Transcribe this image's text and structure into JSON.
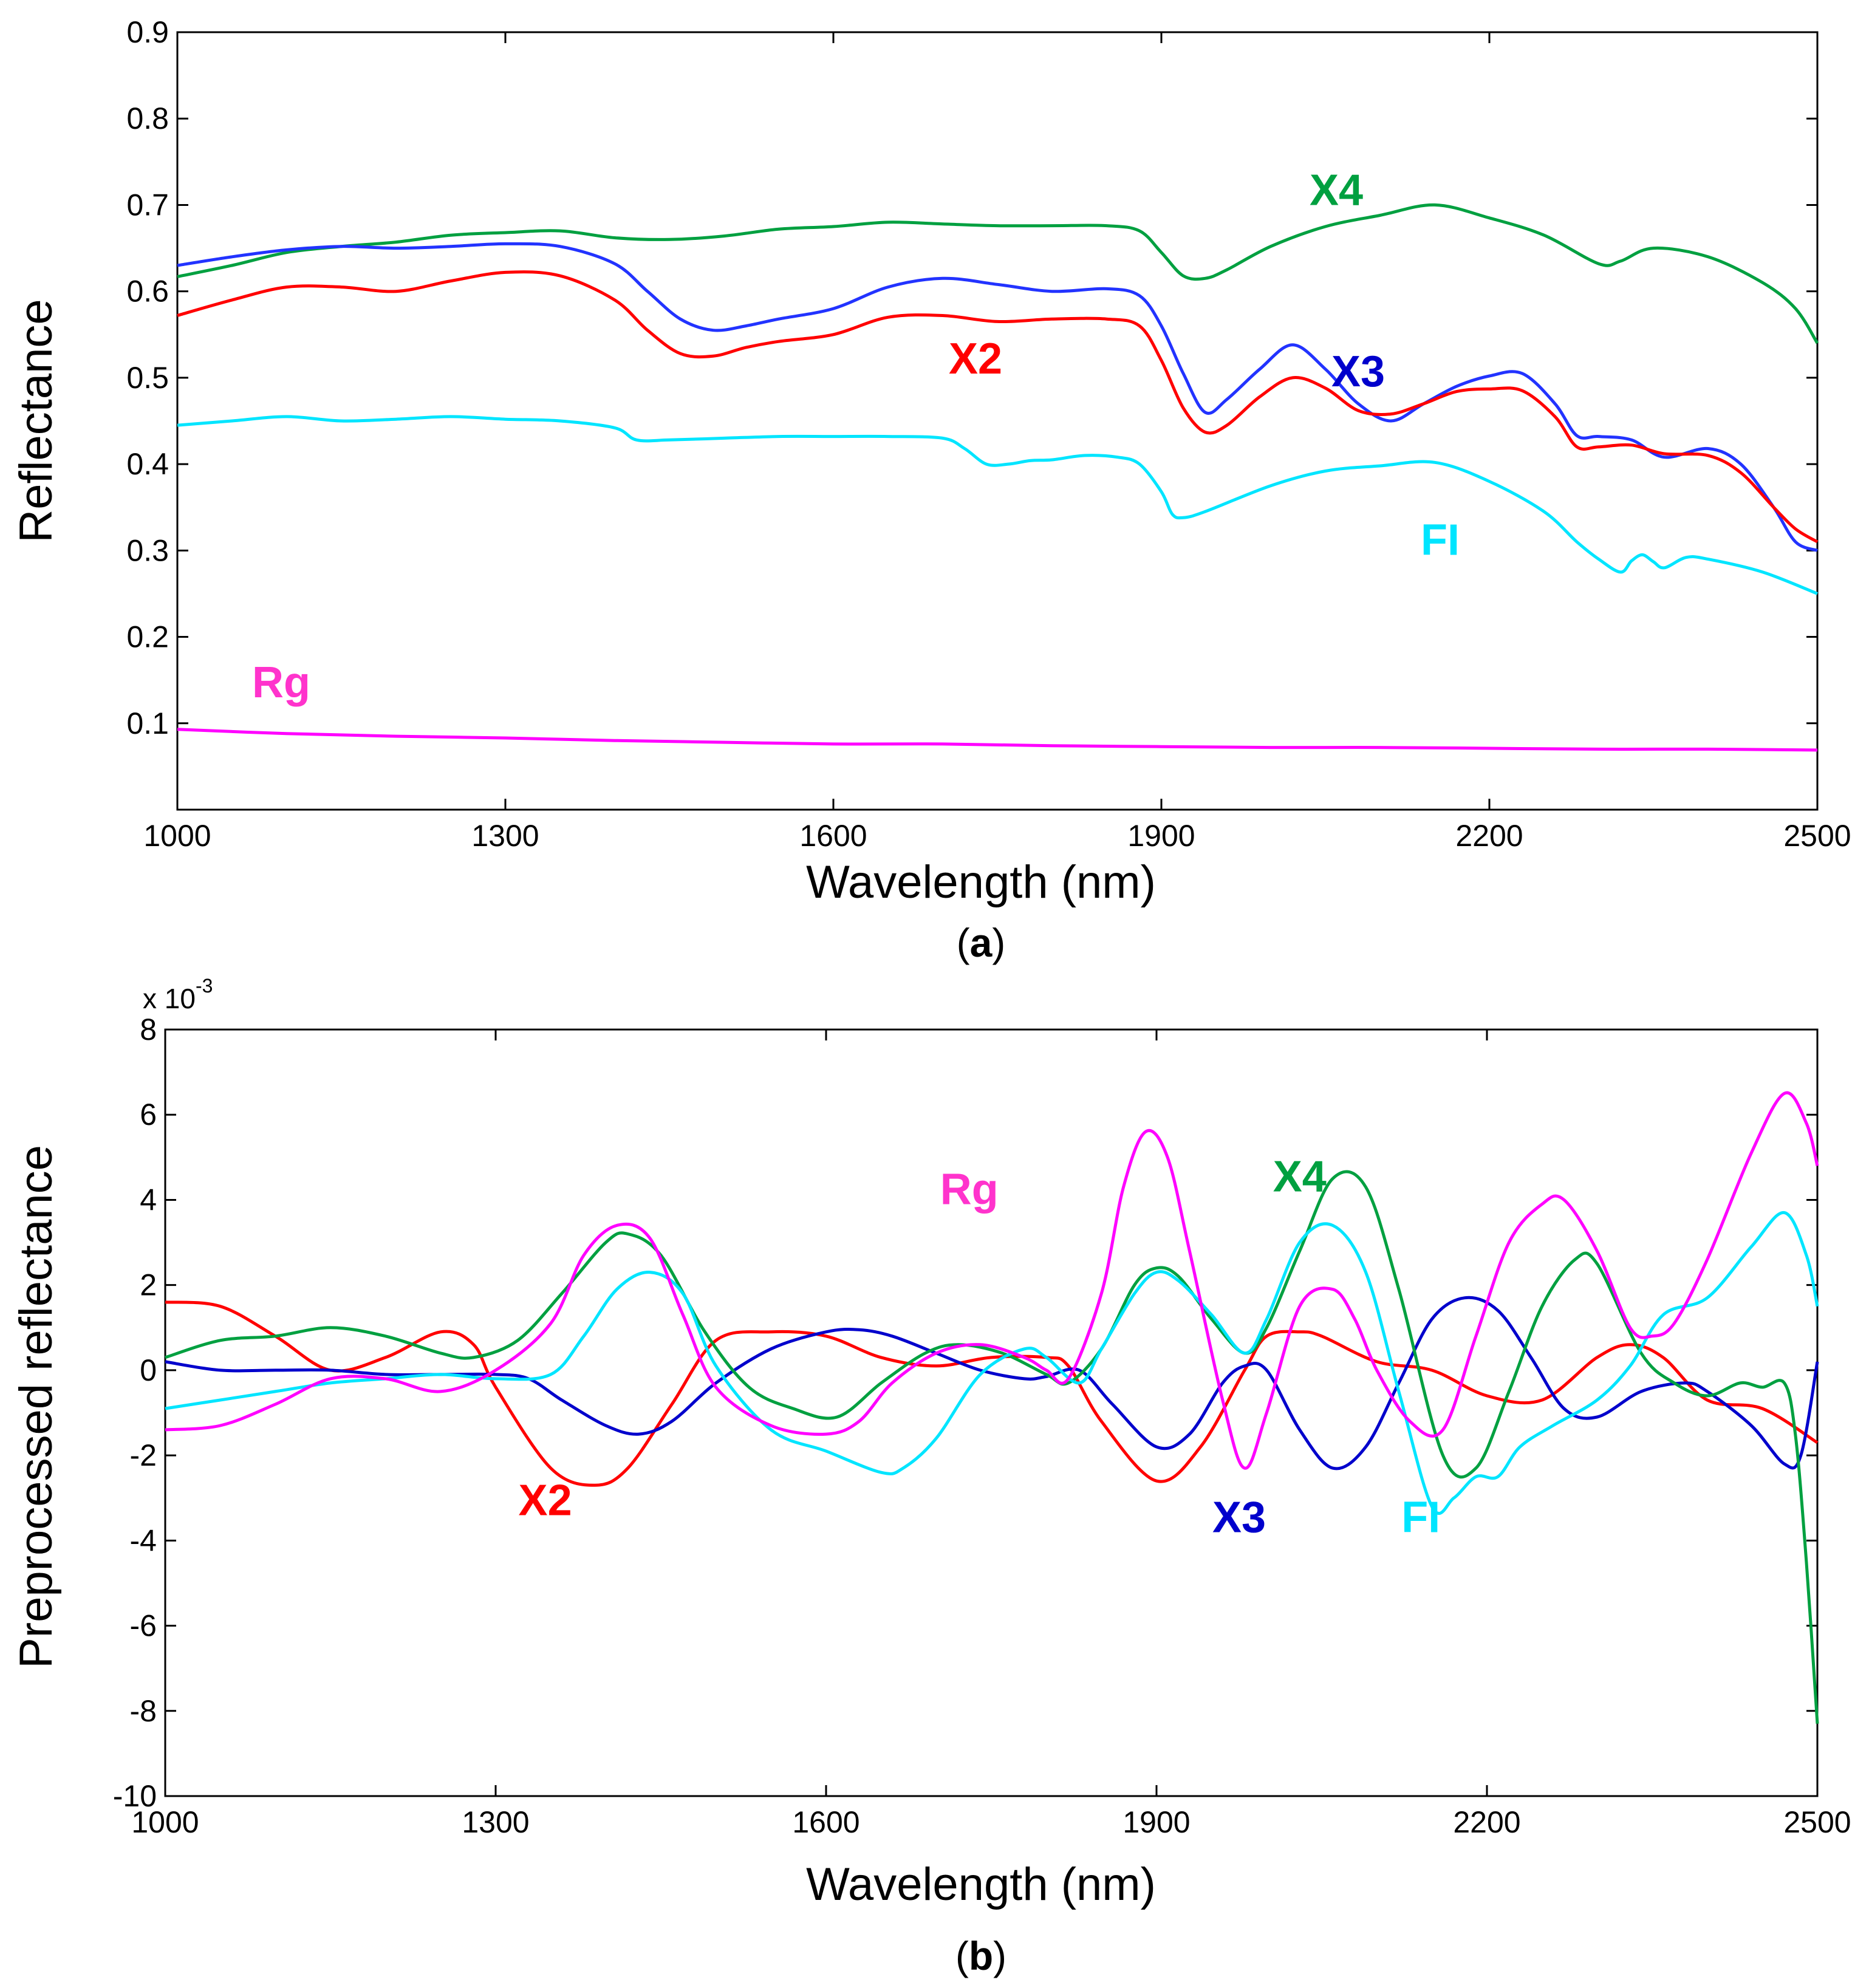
{
  "colors": {
    "X2": "#ff0000",
    "X3": "#0000cc",
    "X4": "#00a040",
    "FI": "#00e5ff",
    "Rg": "#ff33cc",
    "Rg_line": "#ff00ff",
    "X3_line_a": "#2233ff"
  },
  "chart_data": [
    {
      "type": "line",
      "panel": "(a)",
      "panel_letter": "a",
      "xlabel": "Wavelength (nm)",
      "ylabel": "Reflectance",
      "xlim": [
        1000,
        2500
      ],
      "ylim": [
        0,
        0.9
      ],
      "xticks": [
        1000,
        1300,
        1600,
        1900,
        2200,
        2500
      ],
      "yticks": [
        0.1,
        0.2,
        0.3,
        0.4,
        0.5,
        0.6,
        0.7,
        0.8,
        0.9
      ],
      "ytick_labels": [
        "0.1",
        "0.2",
        "0.3",
        "0.4",
        "0.5",
        "0.6",
        "0.7",
        "0.8",
        "0.9"
      ],
      "grid": false,
      "series": [
        {
          "name": "X4",
          "x": [
            1000,
            1050,
            1100,
            1150,
            1200,
            1250,
            1300,
            1350,
            1400,
            1450,
            1500,
            1550,
            1600,
            1650,
            1700,
            1750,
            1800,
            1850,
            1880,
            1900,
            1920,
            1940,
            1960,
            2000,
            2050,
            2100,
            2150,
            2200,
            2250,
            2300,
            2320,
            2350,
            2400,
            2450,
            2480,
            2500
          ],
          "y": [
            0.617,
            0.63,
            0.645,
            0.652,
            0.657,
            0.665,
            0.668,
            0.67,
            0.662,
            0.66,
            0.664,
            0.672,
            0.675,
            0.68,
            0.678,
            0.676,
            0.676,
            0.676,
            0.67,
            0.645,
            0.618,
            0.615,
            0.625,
            0.652,
            0.675,
            0.688,
            0.7,
            0.685,
            0.665,
            0.632,
            0.635,
            0.65,
            0.64,
            0.61,
            0.58,
            0.54
          ]
        },
        {
          "name": "X3",
          "x": [
            1000,
            1050,
            1100,
            1150,
            1200,
            1250,
            1300,
            1350,
            1400,
            1430,
            1460,
            1490,
            1520,
            1550,
            1600,
            1650,
            1700,
            1750,
            1800,
            1850,
            1880,
            1900,
            1920,
            1940,
            1960,
            1990,
            2020,
            2050,
            2080,
            2110,
            2140,
            2170,
            2200,
            2230,
            2260,
            2280,
            2300,
            2330,
            2360,
            2400,
            2430,
            2460,
            2480,
            2500
          ],
          "y": [
            0.63,
            0.64,
            0.648,
            0.652,
            0.65,
            0.652,
            0.655,
            0.652,
            0.632,
            0.6,
            0.568,
            0.555,
            0.56,
            0.568,
            0.58,
            0.605,
            0.615,
            0.608,
            0.6,
            0.603,
            0.595,
            0.56,
            0.505,
            0.46,
            0.475,
            0.51,
            0.538,
            0.51,
            0.47,
            0.45,
            0.47,
            0.49,
            0.502,
            0.505,
            0.47,
            0.433,
            0.432,
            0.428,
            0.408,
            0.418,
            0.4,
            0.35,
            0.31,
            0.3
          ]
        },
        {
          "name": "X2",
          "x": [
            1000,
            1050,
            1100,
            1150,
            1200,
            1250,
            1300,
            1350,
            1400,
            1430,
            1460,
            1490,
            1520,
            1550,
            1600,
            1650,
            1700,
            1750,
            1800,
            1850,
            1880,
            1900,
            1920,
            1940,
            1960,
            1990,
            2020,
            2050,
            2080,
            2110,
            2140,
            2170,
            2200,
            2230,
            2260,
            2280,
            2300,
            2330,
            2360,
            2400,
            2430,
            2460,
            2480,
            2500
          ],
          "y": [
            0.572,
            0.59,
            0.605,
            0.605,
            0.6,
            0.612,
            0.622,
            0.618,
            0.59,
            0.555,
            0.528,
            0.525,
            0.535,
            0.542,
            0.55,
            0.57,
            0.572,
            0.565,
            0.568,
            0.568,
            0.56,
            0.52,
            0.465,
            0.437,
            0.445,
            0.478,
            0.5,
            0.488,
            0.462,
            0.458,
            0.47,
            0.484,
            0.487,
            0.485,
            0.455,
            0.42,
            0.42,
            0.422,
            0.412,
            0.41,
            0.39,
            0.35,
            0.325,
            0.31
          ]
        },
        {
          "name": "FI",
          "x": [
            1000,
            1050,
            1100,
            1150,
            1200,
            1250,
            1300,
            1350,
            1400,
            1420,
            1450,
            1500,
            1550,
            1600,
            1650,
            1700,
            1720,
            1740,
            1760,
            1780,
            1800,
            1830,
            1860,
            1880,
            1900,
            1910,
            1920,
            1940,
            2000,
            2050,
            2100,
            2150,
            2200,
            2250,
            2280,
            2300,
            2320,
            2330,
            2340,
            2350,
            2360,
            2380,
            2400,
            2450,
            2500
          ],
          "y": [
            0.445,
            0.45,
            0.455,
            0.45,
            0.452,
            0.455,
            0.452,
            0.45,
            0.442,
            0.428,
            0.428,
            0.43,
            0.432,
            0.432,
            0.432,
            0.43,
            0.418,
            0.4,
            0.4,
            0.404,
            0.405,
            0.41,
            0.408,
            0.4,
            0.368,
            0.342,
            0.338,
            0.345,
            0.375,
            0.392,
            0.398,
            0.402,
            0.38,
            0.345,
            0.31,
            0.29,
            0.275,
            0.288,
            0.295,
            0.287,
            0.28,
            0.292,
            0.29,
            0.275,
            0.25
          ]
        },
        {
          "name": "Rg",
          "x": [
            1000,
            1100,
            1200,
            1300,
            1400,
            1500,
            1600,
            1700,
            1800,
            1900,
            2000,
            2100,
            2200,
            2300,
            2400,
            2500
          ],
          "y": [
            0.093,
            0.088,
            0.085,
            0.083,
            0.08,
            0.078,
            0.076,
            0.076,
            0.074,
            0.073,
            0.072,
            0.072,
            0.071,
            0.07,
            0.07,
            0.069
          ]
        }
      ],
      "labels": [
        {
          "text": "X4",
          "series": "X4",
          "x": 2060,
          "y": 0.7
        },
        {
          "text": "X2",
          "series": "X2",
          "x": 1730,
          "y": 0.505
        },
        {
          "text": "X3",
          "series": "X3",
          "x": 2080,
          "y": 0.49
        },
        {
          "text": "FI",
          "series": "FI",
          "x": 2155,
          "y": 0.295
        },
        {
          "text": "Rg",
          "series": "Rg",
          "x": 1095,
          "y": 0.13
        }
      ]
    },
    {
      "type": "line",
      "panel": "(b)",
      "panel_letter": "b",
      "xlabel": "Wavelength (nm)",
      "ylabel": "Preprocessed reflectance",
      "y_multiplier_base": "x 10",
      "y_multiplier_exp": "-3",
      "xlim": [
        1000,
        2500
      ],
      "ylim": [
        -10,
        8
      ],
      "xticks": [
        1000,
        1300,
        1600,
        1900,
        2200,
        2500
      ],
      "yticks": [
        -10,
        -8,
        -6,
        -4,
        -2,
        0,
        2,
        4,
        6,
        8
      ],
      "ytick_labels": [
        "-10",
        "-8",
        "-6",
        "-4",
        "-2",
        "0",
        "2",
        "4",
        "6",
        "8"
      ],
      "grid": false,
      "series": [
        {
          "name": "X2",
          "x": [
            1000,
            1050,
            1100,
            1150,
            1200,
            1250,
            1280,
            1300,
            1350,
            1390,
            1420,
            1460,
            1500,
            1550,
            1600,
            1650,
            1700,
            1750,
            1800,
            1820,
            1850,
            1900,
            1940,
            1980,
            2000,
            2030,
            2050,
            2100,
            2150,
            2200,
            2250,
            2300,
            2330,
            2360,
            2400,
            2450,
            2500
          ],
          "y": [
            1.6,
            1.5,
            0.8,
            0.0,
            0.3,
            0.9,
            0.6,
            -0.4,
            -2.3,
            -2.7,
            -2.3,
            -0.8,
            0.7,
            0.9,
            0.8,
            0.3,
            0.1,
            0.3,
            0.3,
            0.1,
            -1.2,
            -2.6,
            -1.8,
            0.0,
            0.8,
            0.9,
            0.8,
            0.2,
            0.0,
            -0.6,
            -0.7,
            0.3,
            0.6,
            0.3,
            -0.7,
            -0.9,
            -1.7
          ]
        },
        {
          "name": "X3",
          "x": [
            1000,
            1050,
            1100,
            1150,
            1200,
            1250,
            1300,
            1330,
            1360,
            1400,
            1430,
            1460,
            1500,
            1550,
            1600,
            1630,
            1660,
            1700,
            1740,
            1780,
            1800,
            1830,
            1860,
            1900,
            1930,
            1960,
            1980,
            2000,
            2030,
            2060,
            2090,
            2120,
            2150,
            2180,
            2210,
            2240,
            2270,
            2300,
            2340,
            2380,
            2400,
            2440,
            2470,
            2485,
            2500
          ],
          "y": [
            0.2,
            0.0,
            0.0,
            0.0,
            -0.1,
            -0.1,
            -0.1,
            -0.2,
            -0.7,
            -1.3,
            -1.5,
            -1.2,
            -0.3,
            0.5,
            0.9,
            0.95,
            0.8,
            0.4,
            0.0,
            -0.2,
            -0.15,
            0.0,
            -0.8,
            -1.8,
            -1.5,
            -0.3,
            0.1,
            0.0,
            -1.4,
            -2.3,
            -1.8,
            -0.3,
            1.2,
            1.7,
            1.4,
            0.3,
            -0.9,
            -1.1,
            -0.5,
            -0.3,
            -0.5,
            -1.3,
            -2.2,
            -2.0,
            0.2
          ]
        },
        {
          "name": "X4",
          "x": [
            1000,
            1050,
            1100,
            1150,
            1200,
            1250,
            1280,
            1320,
            1360,
            1400,
            1420,
            1450,
            1490,
            1530,
            1570,
            1610,
            1650,
            1690,
            1720,
            1760,
            1800,
            1820,
            1850,
            1880,
            1900,
            1920,
            1950,
            1980,
            2000,
            2030,
            2060,
            2090,
            2120,
            2160,
            2190,
            2220,
            2250,
            2280,
            2300,
            2340,
            2370,
            2400,
            2430,
            2450,
            2470,
            2480,
            2490,
            2500
          ],
          "y": [
            0.3,
            0.7,
            0.8,
            1.0,
            0.8,
            0.4,
            0.3,
            0.7,
            1.8,
            3.0,
            3.2,
            2.7,
            0.9,
            -0.4,
            -0.9,
            -1.1,
            -0.3,
            0.4,
            0.6,
            0.4,
            -0.1,
            -0.3,
            0.5,
            2.0,
            2.4,
            2.2,
            1.2,
            0.4,
            1.0,
            2.8,
            4.5,
            4.3,
            1.9,
            -2.0,
            -2.3,
            -0.5,
            1.5,
            2.6,
            2.5,
            0.4,
            -0.3,
            -0.6,
            -0.3,
            -0.4,
            -0.3,
            -1.5,
            -4.5,
            -8.3
          ]
        },
        {
          "name": "FI",
          "x": [
            1000,
            1050,
            1100,
            1150,
            1200,
            1250,
            1300,
            1350,
            1380,
            1410,
            1440,
            1470,
            1500,
            1550,
            1600,
            1650,
            1670,
            1700,
            1740,
            1780,
            1800,
            1830,
            1850,
            1880,
            1900,
            1920,
            1950,
            1980,
            2000,
            2030,
            2060,
            2090,
            2120,
            2150,
            2170,
            2190,
            2210,
            2230,
            2260,
            2300,
            2330,
            2360,
            2400,
            2440,
            2470,
            2490,
            2500
          ],
          "y": [
            -0.9,
            -0.7,
            -0.5,
            -0.3,
            -0.2,
            -0.1,
            -0.2,
            -0.1,
            0.8,
            1.9,
            2.3,
            1.8,
            0.1,
            -1.4,
            -1.9,
            -2.4,
            -2.3,
            -1.6,
            -0.1,
            0.5,
            0.3,
            -0.3,
            0.5,
            1.8,
            2.3,
            2.1,
            1.3,
            0.4,
            1.2,
            3.0,
            3.4,
            2.3,
            -0.5,
            -3.2,
            -3.0,
            -2.5,
            -2.5,
            -1.8,
            -1.3,
            -0.7,
            0.1,
            1.3,
            1.7,
            2.9,
            3.7,
            2.7,
            1.5
          ]
        },
        {
          "name": "Rg",
          "x": [
            1000,
            1050,
            1100,
            1150,
            1200,
            1250,
            1300,
            1350,
            1380,
            1410,
            1440,
            1470,
            1500,
            1550,
            1600,
            1630,
            1660,
            1700,
            1740,
            1780,
            1800,
            1820,
            1850,
            1870,
            1890,
            1910,
            1930,
            1960,
            1980,
            2000,
            2030,
            2060,
            2080,
            2100,
            2130,
            2160,
            2190,
            2220,
            2250,
            2270,
            2300,
            2330,
            2350,
            2370,
            2400,
            2440,
            2470,
            2490,
            2500
          ],
          "y": [
            -1.4,
            -1.3,
            -0.8,
            -0.2,
            -0.2,
            -0.5,
            0.0,
            1.1,
            2.7,
            3.4,
            3.1,
            1.3,
            -0.4,
            -1.3,
            -1.5,
            -1.2,
            -0.3,
            0.4,
            0.6,
            0.3,
            0.0,
            -0.2,
            1.8,
            4.3,
            5.6,
            5.0,
            2.8,
            -0.7,
            -2.3,
            -1.0,
            1.5,
            1.9,
            1.2,
            0.0,
            -1.2,
            -1.4,
            0.8,
            3.0,
            3.9,
            4.0,
            2.8,
            1.0,
            0.8,
            1.1,
            2.6,
            5.1,
            6.5,
            5.8,
            4.8
          ]
        }
      ],
      "labels": [
        {
          "text": "Rg",
          "series": "Rg",
          "x": 1730,
          "y": 3.9
        },
        {
          "text": "X4",
          "series": "X4",
          "x": 2030,
          "y": 4.2
        },
        {
          "text": "X2",
          "series": "X2",
          "x": 1345,
          "y": -3.4
        },
        {
          "text": "X3",
          "series": "X3",
          "x": 1975,
          "y": -3.8
        },
        {
          "text": "FI",
          "series": "FI",
          "x": 2140,
          "y": -3.8
        }
      ]
    }
  ]
}
